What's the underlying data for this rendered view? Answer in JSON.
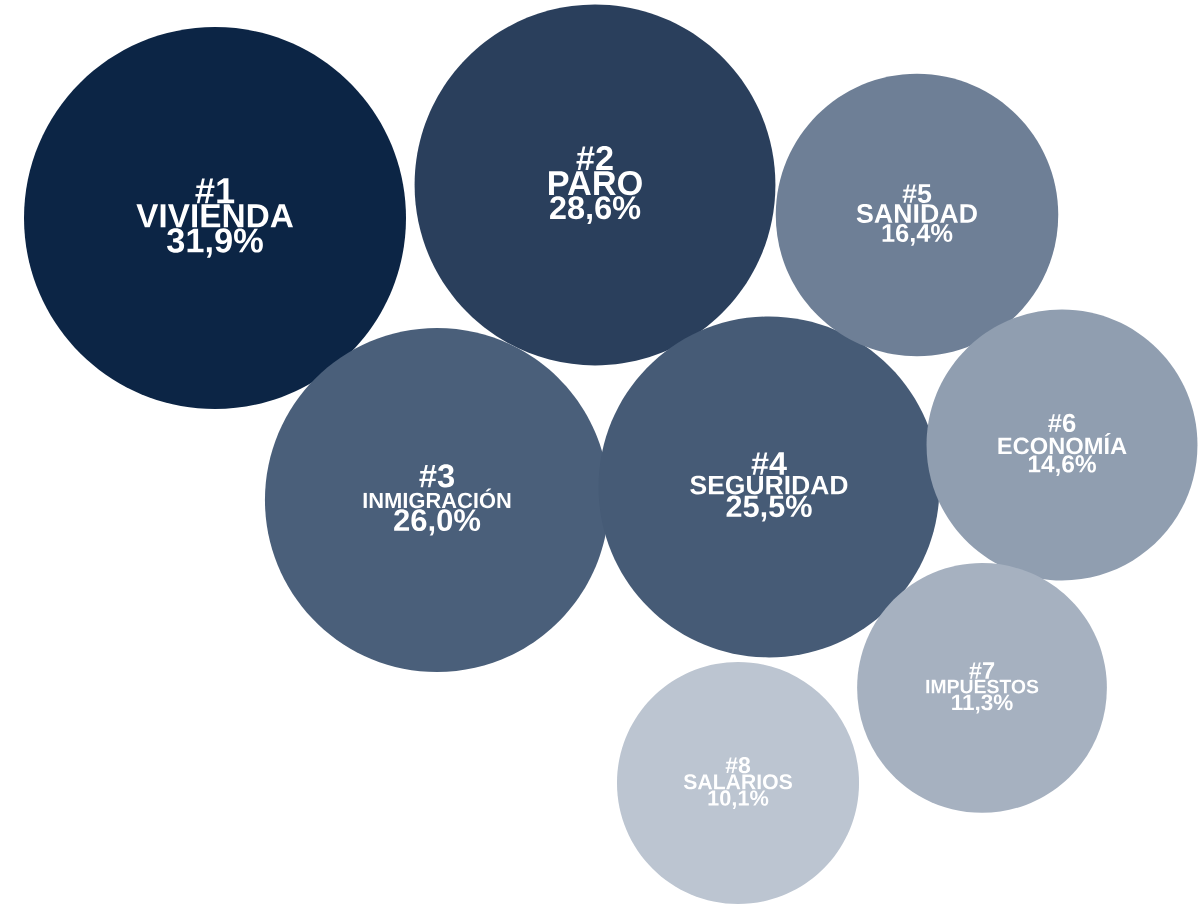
{
  "chart_data": {
    "type": "other",
    "categories": [
      "VIVIENDA",
      "PARO",
      "INMIGRACIÓN",
      "SEGURIDAD",
      "SANIDAD",
      "ECONOMÍA",
      "IMPUESTOS",
      "SALARIOS"
    ],
    "values": [
      31.9,
      28.6,
      26.0,
      25.5,
      16.4,
      14.6,
      11.3,
      10.1
    ],
    "value_labels": [
      "31,9%",
      "28,6%",
      "26,0%",
      "25,5%",
      "16,4%",
      "14,6%",
      "11,3%",
      "10,1%"
    ],
    "annotations": [
      "#1",
      "#2",
      "#3",
      "#4",
      "#5",
      "#6",
      "#7",
      "#8"
    ],
    "colors": [
      "#0c2545",
      "#2a3f5c",
      "#4a5f7a",
      "#465b76",
      "#6e7f96",
      "#909eb0",
      "#a6b1c0",
      "#bcc5d1"
    ]
  }
}
